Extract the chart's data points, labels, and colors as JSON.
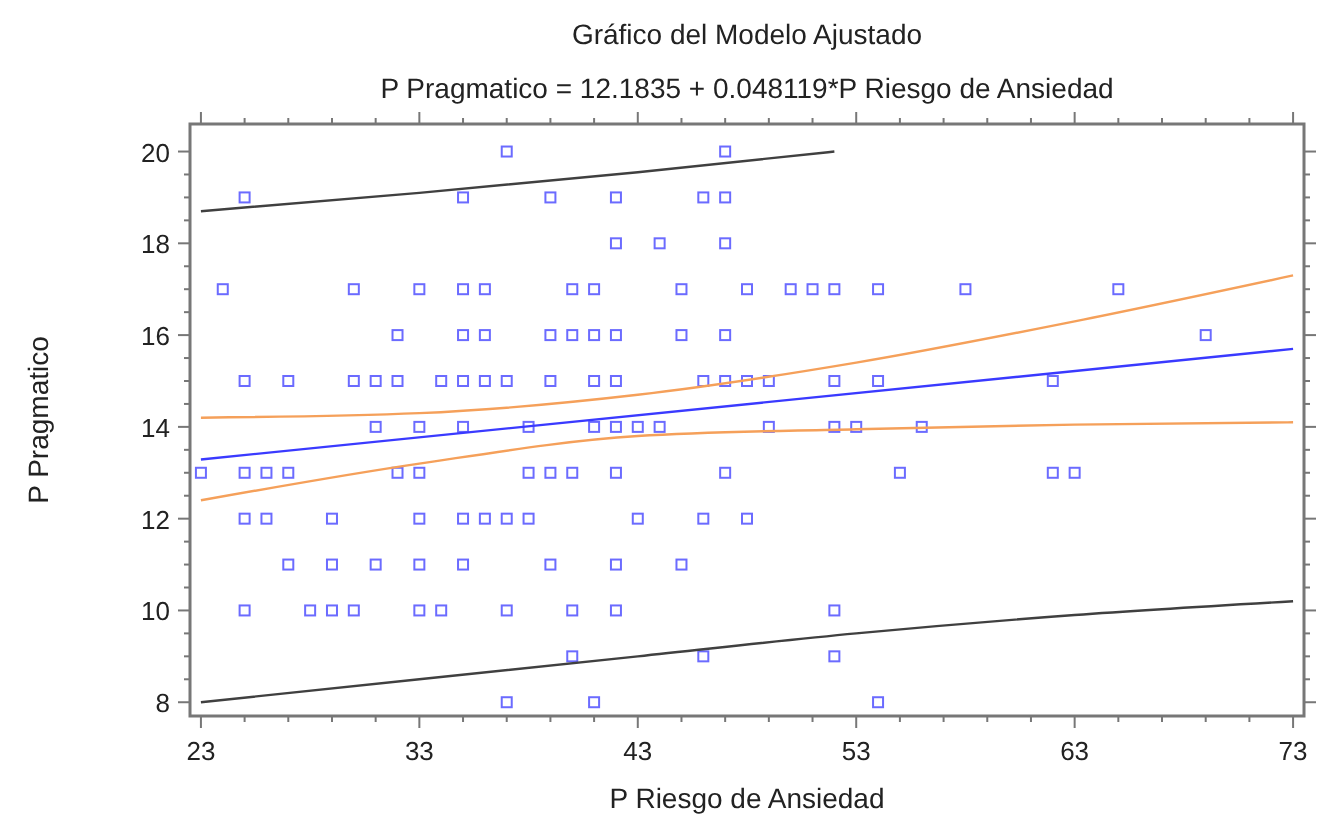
{
  "chart_data": {
    "type": "scatter",
    "title": "Gráfico del Modelo Ajustado",
    "subtitle": "P Pragmatico = 12.1835 + 0.048119*P Riesgo de Ansiedad",
    "xlabel": "P Riesgo de Ansiedad",
    "ylabel": "P Pragmatico",
    "xlim": [
      22.5,
      73.5
    ],
    "ylim": [
      7.7,
      20.6
    ],
    "xticks": [
      23,
      33,
      43,
      53,
      63,
      73
    ],
    "yticks": [
      8,
      10,
      12,
      14,
      16,
      18,
      20
    ],
    "grid": false,
    "series": [
      {
        "marker": "square",
        "color": "#6b6bff",
        "x": [
          37,
          47,
          25,
          35,
          39,
          42,
          46,
          47,
          42,
          44,
          47,
          24,
          30,
          33,
          35,
          36,
          40,
          41,
          45,
          48,
          50,
          51,
          52,
          54,
          58,
          65,
          32,
          35,
          36,
          39,
          40,
          41,
          42,
          45,
          47,
          69,
          25,
          27,
          30,
          31,
          32,
          34,
          35,
          36,
          37,
          39,
          41,
          42,
          46,
          47,
          48,
          49,
          52,
          54,
          62,
          31,
          33,
          35,
          38,
          41,
          42,
          43,
          44,
          49,
          52,
          53,
          56,
          23,
          25,
          26,
          27,
          32,
          33,
          38,
          39,
          40,
          42,
          47,
          55,
          62,
          63,
          25,
          26,
          29,
          33,
          35,
          36,
          37,
          38,
          43,
          46,
          48,
          27,
          29,
          31,
          33,
          35,
          39,
          42,
          45,
          25,
          28,
          29,
          30,
          33,
          34,
          37,
          40,
          42,
          52,
          40,
          46,
          52,
          37,
          41,
          54
        ],
        "values": [
          20,
          20,
          19,
          19,
          19,
          19,
          19,
          19,
          18,
          18,
          18,
          17,
          17,
          17,
          17,
          17,
          17,
          17,
          17,
          17,
          17,
          17,
          17,
          17,
          17,
          17,
          16,
          16,
          16,
          16,
          16,
          16,
          16,
          16,
          16,
          16,
          15,
          15,
          15,
          15,
          15,
          15,
          15,
          15,
          15,
          15,
          15,
          15,
          15,
          15,
          15,
          15,
          15,
          15,
          15,
          14,
          14,
          14,
          14,
          14,
          14,
          14,
          14,
          14,
          14,
          14,
          14,
          13,
          13,
          13,
          13,
          13,
          13,
          13,
          13,
          13,
          13,
          13,
          13,
          13,
          13,
          12,
          12,
          12,
          12,
          12,
          12,
          12,
          12,
          12,
          12,
          12,
          11,
          11,
          11,
          11,
          11,
          11,
          11,
          11,
          10,
          10,
          10,
          10,
          10,
          10,
          10,
          10,
          10,
          10,
          9,
          9,
          9,
          8,
          8,
          8
        ]
      },
      {
        "type": "line",
        "marker": "none",
        "color": "#3a3aff",
        "x": [
          23,
          73
        ],
        "values": [
          13.29,
          15.7
        ]
      },
      {
        "type": "line",
        "marker": "none",
        "color": "#f5a05a",
        "x": [
          23,
          33,
          43,
          53,
          63,
          73
        ],
        "values": [
          14.2,
          14.3,
          14.7,
          15.4,
          16.3,
          17.3
        ]
      },
      {
        "type": "line",
        "marker": "none",
        "color": "#f5a05a",
        "x": [
          23,
          33,
          43,
          53,
          63,
          73
        ],
        "values": [
          12.4,
          13.2,
          13.8,
          13.95,
          14.05,
          14.1
        ]
      },
      {
        "type": "line",
        "marker": "none",
        "color": "#404040",
        "x": [
          23,
          33,
          43,
          52
        ],
        "values": [
          18.7,
          19.1,
          19.55,
          20.0
        ]
      },
      {
        "type": "line",
        "marker": "none",
        "color": "#404040",
        "x": [
          23,
          33,
          43,
          53,
          63,
          73
        ],
        "values": [
          8.0,
          8.5,
          9.0,
          9.5,
          9.9,
          10.2
        ]
      }
    ]
  }
}
